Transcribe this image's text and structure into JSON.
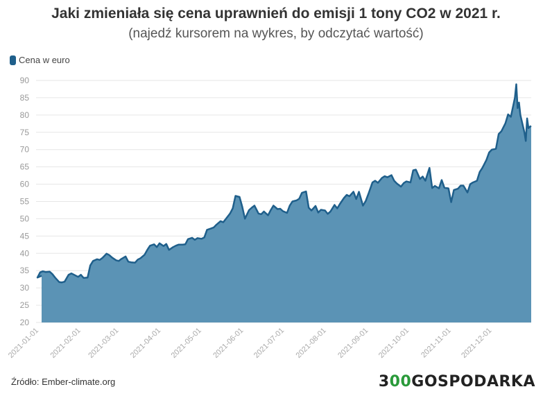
{
  "title": "Jaki zmieniała się cena uprawnień do emisji 1 tony CO2 w 2021 r.",
  "subtitle": "(najedź kursorem na wykres, by odczytać wartość)",
  "source": "Źródło: Ember-climate.org",
  "brand": {
    "prefix": "3",
    "middle": "00",
    "suffix": "GOSPODARKA"
  },
  "colors": {
    "line": "#1f5f8b",
    "fill": "#5b93b5",
    "grid": "#e6e6e6",
    "accent": "#2a9a3a"
  },
  "chart_data": {
    "type": "area",
    "title": "Jaki zmieniała się cena uprawnień do emisji 1 tony CO2 w 2021 r.",
    "series": [
      {
        "name": "Cena w euro",
        "points": [
          [
            "2021-01-01",
            33.5
          ],
          [
            "2021-01-02",
            33.0
          ],
          [
            "2021-01-04",
            34.5
          ],
          [
            "2021-01-06",
            34.8
          ],
          [
            "2021-01-08",
            34.6
          ],
          [
            "2021-01-11",
            34.7
          ],
          [
            "2021-01-13",
            34.0
          ],
          [
            "2021-01-15",
            33.0
          ],
          [
            "2021-01-18",
            31.7
          ],
          [
            "2021-01-20",
            31.6
          ],
          [
            "2021-01-22",
            31.8
          ],
          [
            "2021-01-25",
            33.8
          ],
          [
            "2021-01-27",
            34.2
          ],
          [
            "2021-01-29",
            33.8
          ],
          [
            "2021-02-01",
            33.2
          ],
          [
            "2021-02-03",
            33.8
          ],
          [
            "2021-02-05",
            32.9
          ],
          [
            "2021-02-08",
            33.0
          ],
          [
            "2021-02-10",
            36.5
          ],
          [
            "2021-02-12",
            37.8
          ],
          [
            "2021-02-15",
            38.3
          ],
          [
            "2021-02-17",
            38.1
          ],
          [
            "2021-02-19",
            38.7
          ],
          [
            "2021-02-22",
            39.9
          ],
          [
            "2021-02-24",
            39.5
          ],
          [
            "2021-02-26",
            38.8
          ],
          [
            "2021-03-01",
            38.0
          ],
          [
            "2021-03-03",
            37.8
          ],
          [
            "2021-03-05",
            38.4
          ],
          [
            "2021-03-08",
            39.1
          ],
          [
            "2021-03-10",
            37.6
          ],
          [
            "2021-03-12",
            37.4
          ],
          [
            "2021-03-15",
            37.3
          ],
          [
            "2021-03-17",
            38.2
          ],
          [
            "2021-03-19",
            38.6
          ],
          [
            "2021-03-22",
            39.6
          ],
          [
            "2021-03-24",
            41.0
          ],
          [
            "2021-03-26",
            42.2
          ],
          [
            "2021-03-29",
            42.6
          ],
          [
            "2021-03-31",
            41.8
          ],
          [
            "2021-04-02",
            42.9
          ],
          [
            "2021-04-05",
            42.1
          ],
          [
            "2021-04-07",
            42.7
          ],
          [
            "2021-04-09",
            41.0
          ],
          [
            "2021-04-12",
            41.8
          ],
          [
            "2021-04-14",
            42.2
          ],
          [
            "2021-04-16",
            42.5
          ],
          [
            "2021-04-19",
            42.5
          ],
          [
            "2021-04-21",
            42.6
          ],
          [
            "2021-04-23",
            44.1
          ],
          [
            "2021-04-26",
            44.5
          ],
          [
            "2021-04-28",
            43.9
          ],
          [
            "2021-04-30",
            44.4
          ],
          [
            "2021-05-03",
            44.2
          ],
          [
            "2021-05-05",
            44.6
          ],
          [
            "2021-05-07",
            46.8
          ],
          [
            "2021-05-10",
            47.2
          ],
          [
            "2021-05-12",
            47.5
          ],
          [
            "2021-05-14",
            48.3
          ],
          [
            "2021-05-17",
            49.3
          ],
          [
            "2021-05-19",
            49.0
          ],
          [
            "2021-05-21",
            50.0
          ],
          [
            "2021-05-24",
            51.5
          ],
          [
            "2021-05-26",
            53.0
          ],
          [
            "2021-05-28",
            56.6
          ],
          [
            "2021-05-31",
            56.3
          ],
          [
            "2021-06-02",
            53.5
          ],
          [
            "2021-06-04",
            50.0
          ],
          [
            "2021-06-07",
            52.5
          ],
          [
            "2021-06-09",
            53.2
          ],
          [
            "2021-06-11",
            53.8
          ],
          [
            "2021-06-14",
            51.5
          ],
          [
            "2021-06-16",
            51.3
          ],
          [
            "2021-06-18",
            52.1
          ],
          [
            "2021-06-21",
            51.0
          ],
          [
            "2021-06-23",
            52.5
          ],
          [
            "2021-06-25",
            53.8
          ],
          [
            "2021-06-28",
            52.8
          ],
          [
            "2021-06-30",
            52.9
          ],
          [
            "2021-07-02",
            52.2
          ],
          [
            "2021-07-05",
            51.7
          ],
          [
            "2021-07-07",
            53.8
          ],
          [
            "2021-07-09",
            55.0
          ],
          [
            "2021-07-12",
            55.3
          ],
          [
            "2021-07-14",
            55.8
          ],
          [
            "2021-07-16",
            57.5
          ],
          [
            "2021-07-19",
            57.9
          ],
          [
            "2021-07-21",
            53.2
          ],
          [
            "2021-07-23",
            52.4
          ],
          [
            "2021-07-26",
            53.7
          ],
          [
            "2021-07-28",
            51.8
          ],
          [
            "2021-07-30",
            52.6
          ],
          [
            "2021-08-02",
            52.4
          ],
          [
            "2021-08-04",
            51.4
          ],
          [
            "2021-08-06",
            52.1
          ],
          [
            "2021-08-09",
            54.0
          ],
          [
            "2021-08-11",
            53.0
          ],
          [
            "2021-08-13",
            54.3
          ],
          [
            "2021-08-16",
            56.0
          ],
          [
            "2021-08-18",
            56.9
          ],
          [
            "2021-08-20",
            56.5
          ],
          [
            "2021-08-23",
            57.8
          ],
          [
            "2021-08-25",
            55.7
          ],
          [
            "2021-08-27",
            57.8
          ],
          [
            "2021-08-30",
            53.8
          ],
          [
            "2021-09-01",
            55.1
          ],
          [
            "2021-09-03",
            57.2
          ],
          [
            "2021-09-06",
            60.5
          ],
          [
            "2021-09-08",
            61.0
          ],
          [
            "2021-09-10",
            60.4
          ],
          [
            "2021-09-13",
            61.8
          ],
          [
            "2021-09-15",
            62.3
          ],
          [
            "2021-09-17",
            62.0
          ],
          [
            "2021-09-20",
            62.6
          ],
          [
            "2021-09-22",
            61.0
          ],
          [
            "2021-09-24",
            60.2
          ],
          [
            "2021-09-27",
            59.3
          ],
          [
            "2021-09-29",
            60.3
          ],
          [
            "2021-10-01",
            60.8
          ],
          [
            "2021-10-04",
            60.5
          ],
          [
            "2021-10-06",
            64.0
          ],
          [
            "2021-10-08",
            64.2
          ],
          [
            "2021-10-11",
            61.5
          ],
          [
            "2021-10-13",
            62.2
          ],
          [
            "2021-10-15",
            61.0
          ],
          [
            "2021-10-18",
            64.7
          ],
          [
            "2021-10-20",
            58.9
          ],
          [
            "2021-10-22",
            59.5
          ],
          [
            "2021-10-25",
            58.8
          ],
          [
            "2021-10-27",
            61.2
          ],
          [
            "2021-10-29",
            59.0
          ],
          [
            "2021-11-01",
            58.8
          ],
          [
            "2021-11-03",
            54.8
          ],
          [
            "2021-11-05",
            58.3
          ],
          [
            "2021-11-08",
            58.7
          ],
          [
            "2021-11-10",
            59.6
          ],
          [
            "2021-11-12",
            59.6
          ],
          [
            "2021-11-15",
            57.6
          ],
          [
            "2021-11-17",
            60.0
          ],
          [
            "2021-11-19",
            60.5
          ],
          [
            "2021-11-22",
            61.0
          ],
          [
            "2021-11-24",
            63.5
          ],
          [
            "2021-11-26",
            64.7
          ],
          [
            "2021-11-29",
            67.0
          ],
          [
            "2021-12-01",
            69.2
          ],
          [
            "2021-12-03",
            70.0
          ],
          [
            "2021-12-06",
            70.2
          ],
          [
            "2021-12-08",
            74.5
          ],
          [
            "2021-12-10",
            75.3
          ],
          [
            "2021-12-13",
            77.6
          ],
          [
            "2021-12-15",
            80.2
          ],
          [
            "2021-12-17",
            79.5
          ],
          [
            "2021-12-20",
            85.0
          ],
          [
            "2021-12-21",
            88.9
          ],
          [
            "2021-12-22",
            82.0
          ],
          [
            "2021-12-23",
            83.6
          ],
          [
            "2021-12-24",
            80.0
          ],
          [
            "2021-12-27",
            75.0
          ],
          [
            "2021-12-28",
            72.5
          ],
          [
            "2021-12-29",
            79.0
          ],
          [
            "2021-12-30",
            76.2
          ],
          [
            "2021-12-31",
            76.6
          ],
          [
            "2022-01-01",
            76.8
          ]
        ]
      }
    ],
    "x_ticks": [
      "2021-01-01",
      "2021-02-01",
      "2021-03-01",
      "2021-04-01",
      "2021-05-01",
      "2021-06-01",
      "2021-07-01",
      "2021-08-01",
      "2021-09-01",
      "2021-10-01",
      "2021-11-01",
      "2021-12-01"
    ],
    "y_ticks": [
      20,
      25,
      30,
      35,
      40,
      45,
      50,
      55,
      60,
      65,
      70,
      75,
      80,
      85,
      90
    ],
    "ylim": [
      20,
      90
    ],
    "xlim": [
      "2021-01-01",
      "2022-01-01"
    ],
    "xlabel": "",
    "ylabel": "",
    "grid": true,
    "legend": "top-left"
  }
}
